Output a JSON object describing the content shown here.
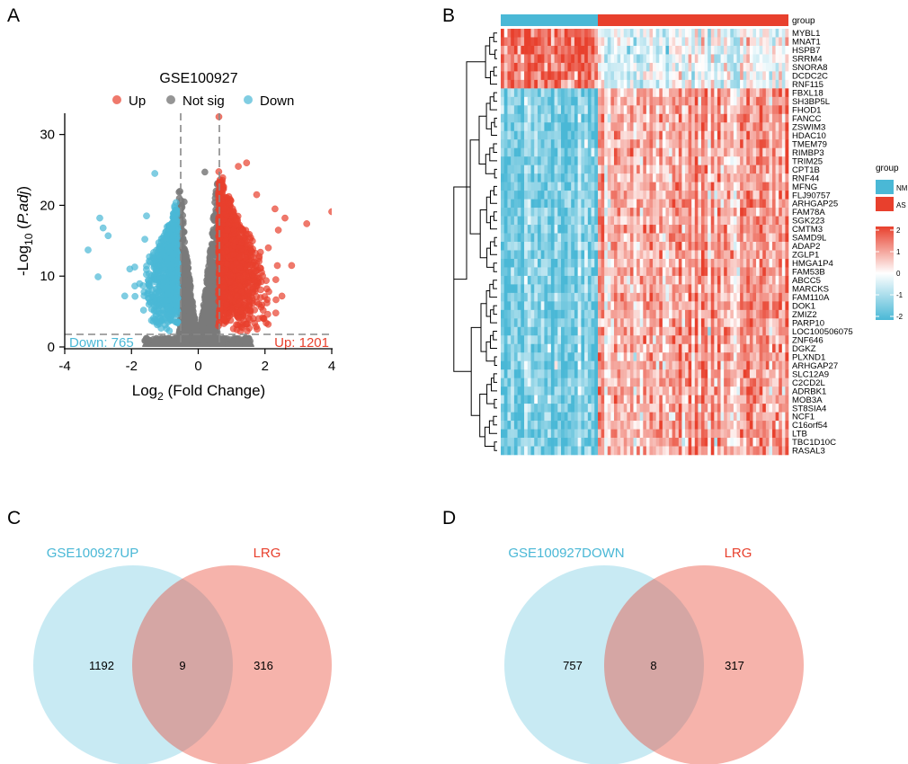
{
  "panels": {
    "A": "A",
    "B": "B",
    "C": "C",
    "D": "D"
  },
  "chart_data": [
    {
      "id": "volcano",
      "type": "scatter",
      "title": "GSE100927",
      "legend": {
        "labels": [
          "Up",
          "Not sig",
          "Down"
        ],
        "position": "top"
      },
      "xlabel": "Log",
      "xlabel_sub": "2",
      "xlabel_rest": " (Fold Change)",
      "ylabel": "-Log",
      "ylabel_sub": "10",
      "ylabel_rest": "P.adj",
      "xlim": [
        -4,
        4
      ],
      "ylim": [
        0,
        33
      ],
      "xticks": [
        "-4",
        "-2",
        "0",
        "2",
        "4"
      ],
      "yticks": [
        "0",
        "10",
        "20",
        "30"
      ],
      "fc_threshold": [
        -0.585,
        0.585
      ],
      "padj_threshold_log10": 1.3,
      "annotations": {
        "down": "Down: 765",
        "up": "Up: 1201"
      },
      "counts": {
        "up": 1201,
        "down": 765
      },
      "colors": {
        "up": "#e8402d",
        "down": "#4ab8d6",
        "notsig": "#7a7a7a"
      },
      "outliers": {
        "up": [
          [
            0.62,
            32.5
          ],
          [
            4.0,
            19.1
          ],
          [
            3.25,
            17.4
          ],
          [
            2.6,
            18.2
          ],
          [
            2.3,
            19.5
          ],
          [
            1.45,
            26.0
          ],
          [
            1.2,
            25.5
          ],
          [
            2.4,
            16.5
          ],
          [
            2.8,
            11.5
          ],
          [
            1.75,
            21.5
          ],
          [
            2.1,
            14.0
          ]
        ],
        "down": [
          [
            -3.3,
            13.7
          ],
          [
            -2.95,
            18.2
          ],
          [
            -2.85,
            16.8
          ],
          [
            -3.0,
            9.9
          ],
          [
            -2.7,
            15.7
          ],
          [
            -2.2,
            7.2
          ],
          [
            -1.9,
            8.6
          ],
          [
            -1.6,
            15.2
          ],
          [
            -1.3,
            24.5
          ],
          [
            -2.05,
            11.0
          ],
          [
            -1.55,
            18.5
          ]
        ],
        "notsig": [
          [
            -0.42,
            20.5
          ],
          [
            0.2,
            24.7
          ]
        ]
      }
    },
    {
      "id": "heatmap",
      "type": "heatmap",
      "group_header": "group",
      "legend_title": "group",
      "groups": [
        {
          "name": "NM",
          "color": "#4ab8d6",
          "n": 29
        },
        {
          "name": "AS",
          "color": "#e8402d",
          "n": 59
        }
      ],
      "colorbar": {
        "range": [
          -2,
          2
        ],
        "ticks": [
          "2",
          "1",
          "0",
          "-1",
          "-2"
        ]
      },
      "rows_up_in_NM": 7,
      "genes": [
        "MYBL1",
        "MNAT1",
        "HSPB7",
        "SRRM4",
        "SNORA8",
        "DCDC2C",
        "RNF115",
        "FBXL18",
        "SH3BP5L",
        "FHOD1",
        "FANCC",
        "ZSWIM3",
        "HDAC10",
        "TMEM79",
        "RIMBP3",
        "TRIM25",
        "CPT1B",
        "RNF44",
        "MFNG",
        "FLJ90757",
        "ARHGAP25",
        "FAM78A",
        "SGK223",
        "CMTM3",
        "SAMD9L",
        "ADAP2",
        "ZGLP1",
        "HMGA1P4",
        "FAM53B",
        "ABCC5",
        "MARCKS",
        "FAM110A",
        "DOK1",
        "ZMIZ2",
        "PARP10",
        "LOC100506075",
        "ZNF646",
        "DGKZ",
        "PLXND1",
        "ARHGAP27",
        "SLC12A9",
        "C2CD2L",
        "ADRBK1",
        "MOB3A",
        "ST8SIA4",
        "NCF1",
        "C16orf54",
        "LTB",
        "TBC1D10C",
        "RASAL3"
      ]
    },
    {
      "id": "venn_up",
      "type": "venn",
      "sets": [
        {
          "name": "GSE100927UP",
          "color": "#4ab8d6"
        },
        {
          "name": "LRG",
          "color": "#e8402d"
        }
      ],
      "values": {
        "left_only": "1192",
        "overlap": "9",
        "right_only": "316"
      }
    },
    {
      "id": "venn_down",
      "type": "venn",
      "sets": [
        {
          "name": "GSE100927DOWN",
          "color": "#4ab8d6"
        },
        {
          "name": "LRG",
          "color": "#e8402d"
        }
      ],
      "values": {
        "left_only": "757",
        "overlap": "8",
        "right_only": "317"
      }
    }
  ]
}
